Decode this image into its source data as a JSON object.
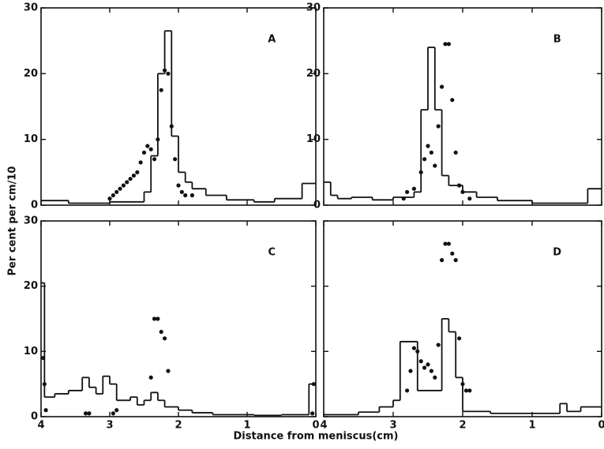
{
  "figure": {
    "xlabel": "Distance from meniscus(cm)",
    "ylabel": "Per cent per cm/10"
  },
  "chart_data": [
    {
      "type": "histogram",
      "label": "A",
      "xlim": [
        4,
        0
      ],
      "ylim": [
        0,
        30
      ],
      "xticks": [
        4,
        3,
        2,
        1,
        0
      ],
      "yticks": [
        0,
        10,
        20,
        30
      ],
      "xtick_labels": false,
      "ytick_labels": true,
      "bins": [
        4,
        3.6,
        3.0,
        2.5,
        2.4,
        2.3,
        2.2,
        2.1,
        2.0,
        1.9,
        1.8,
        1.6,
        1.3,
        0.9,
        0.6,
        0.2,
        0
      ],
      "values": [
        0.7,
        0.3,
        0.5,
        2,
        7.5,
        20,
        26.5,
        10.5,
        5,
        3.5,
        2.5,
        1.5,
        0.8,
        0.5,
        1,
        3.3
      ],
      "overlay": {
        "type": "scatter",
        "x": [
          3.0,
          2.95,
          2.9,
          2.85,
          2.8,
          2.75,
          2.7,
          2.65,
          2.6,
          2.55,
          2.5,
          2.45,
          2.4,
          2.35,
          2.3,
          2.25,
          2.2,
          2.15,
          2.1,
          2.05,
          2.0,
          1.95,
          1.9,
          1.8
        ],
        "values": [
          1,
          1.5,
          2,
          2.5,
          3,
          3.5,
          4,
          4.5,
          5,
          6.5,
          8,
          9,
          8.5,
          7,
          10,
          17.5,
          20.5,
          20,
          12,
          7,
          3,
          2,
          1.5,
          1.5
        ]
      }
    },
    {
      "type": "histogram",
      "label": "B",
      "xlim": [
        4,
        0
      ],
      "ylim": [
        0,
        30
      ],
      "xticks": [
        4,
        3,
        2,
        1,
        0
      ],
      "yticks": [
        0,
        10,
        20,
        30
      ],
      "xtick_labels": false,
      "ytick_labels": true,
      "bins": [
        4,
        3.9,
        3.8,
        3.6,
        3.3,
        3.0,
        2.7,
        2.6,
        2.5,
        2.4,
        2.3,
        2.2,
        2.0,
        1.8,
        1.5,
        1.0,
        0.2,
        0
      ],
      "values": [
        3.5,
        1.5,
        1,
        1.2,
        0.8,
        1.2,
        2,
        14.5,
        24,
        14.5,
        4.5,
        3,
        2,
        1.2,
        0.7,
        0.3,
        2.5
      ],
      "overlay": {
        "type": "scatter",
        "x": [
          2.85,
          2.8,
          2.7,
          2.6,
          2.55,
          2.5,
          2.45,
          2.4,
          2.35,
          2.3,
          2.25,
          2.2,
          2.15,
          2.1,
          2.05,
          2.0,
          1.9
        ],
        "values": [
          1,
          2,
          2.5,
          5,
          7,
          9,
          8,
          6,
          12,
          18,
          24.5,
          24.5,
          16,
          8,
          3,
          2,
          1
        ]
      }
    },
    {
      "type": "histogram",
      "label": "C",
      "xlim": [
        4,
        0
      ],
      "ylim": [
        0,
        30
      ],
      "xticks": [
        4,
        3,
        2,
        1,
        0
      ],
      "yticks": [
        0,
        10,
        20,
        30
      ],
      "xtick_labels": true,
      "ytick_labels": true,
      "bins": [
        4,
        3.95,
        3.8,
        3.6,
        3.4,
        3.3,
        3.2,
        3.1,
        3.0,
        2.9,
        2.7,
        2.6,
        2.5,
        2.4,
        2.3,
        2.2,
        2.0,
        1.8,
        1.5,
        0.9,
        0.5,
        0.1,
        0
      ],
      "values": [
        20.5,
        3,
        3.5,
        4,
        6,
        4.5,
        3.5,
        6.2,
        5,
        2.5,
        3,
        1.8,
        2.5,
        3.7,
        2.5,
        1.5,
        1,
        0.6,
        0.3,
        0.2,
        0.3,
        5
      ],
      "overlay": {
        "type": "scatter",
        "x": [
          3.97,
          3.95,
          3.93,
          3.35,
          3.3,
          2.95,
          2.9,
          2.4,
          2.35,
          2.3,
          2.25,
          2.2,
          2.15,
          0.05,
          0.03
        ],
        "values": [
          9,
          5,
          1,
          0.5,
          0.5,
          0.5,
          1,
          6,
          15,
          15,
          13,
          12,
          7,
          0.5,
          5
        ]
      }
    },
    {
      "type": "histogram",
      "label": "D",
      "xlim": [
        4,
        0
      ],
      "ylim": [
        0,
        30
      ],
      "xticks": [
        4,
        3,
        2,
        1,
        0
      ],
      "yticks": [
        0,
        10,
        20,
        30
      ],
      "xtick_labels": true,
      "ytick_labels": false,
      "bins": [
        4,
        3.5,
        3.2,
        3.0,
        2.9,
        2.65,
        2.3,
        2.2,
        2.1,
        2.0,
        1.6,
        0.6,
        0.5,
        0.3,
        0
      ],
      "values": [
        0.3,
        0.7,
        1.5,
        2.5,
        11.5,
        4,
        15,
        13,
        6,
        0.8,
        0.5,
        2,
        0.8,
        1.5
      ],
      "overlay": {
        "type": "scatter",
        "x": [
          2.8,
          2.75,
          2.7,
          2.65,
          2.6,
          2.55,
          2.5,
          2.45,
          2.4,
          2.35,
          2.3,
          2.25,
          2.2,
          2.15,
          2.1,
          2.05,
          2.0,
          1.95,
          1.9
        ],
        "values": [
          4,
          7,
          10.5,
          10,
          8.5,
          7.5,
          8,
          7,
          6,
          11,
          24,
          26.5,
          26.5,
          25,
          24,
          12,
          5,
          4,
          4
        ]
      }
    }
  ]
}
